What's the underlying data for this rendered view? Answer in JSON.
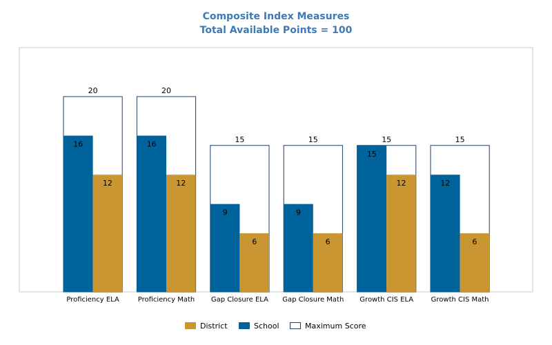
{
  "chart_data": {
    "type": "bar",
    "title": "Composite Index Measures",
    "subtitle": "Total Available Points = 100",
    "categories": [
      "Proficiency ELA",
      "Proficiency Math",
      "Gap Closure ELA",
      "Gap Closure Math",
      "Growth CIS ELA",
      "Growth CIS Math"
    ],
    "series": [
      {
        "name": "Maximum Score",
        "values": [
          20,
          20,
          15,
          15,
          15,
          15
        ]
      },
      {
        "name": "School",
        "values": [
          16,
          16,
          9,
          9,
          15,
          12
        ]
      },
      {
        "name": "District",
        "values": [
          12,
          12,
          6,
          6,
          12,
          6
        ]
      }
    ],
    "ylim": [
      0,
      25
    ],
    "grid": false,
    "legend_position": "bottom-center",
    "colors": {
      "school": "#00639b",
      "district": "#c99632",
      "max_fill": "#ffffff",
      "max_border": "#1f3f66",
      "title": "#3d7ab8"
    }
  },
  "legend": {
    "district": "District",
    "school": "School",
    "maximum": "Maximum Score"
  }
}
